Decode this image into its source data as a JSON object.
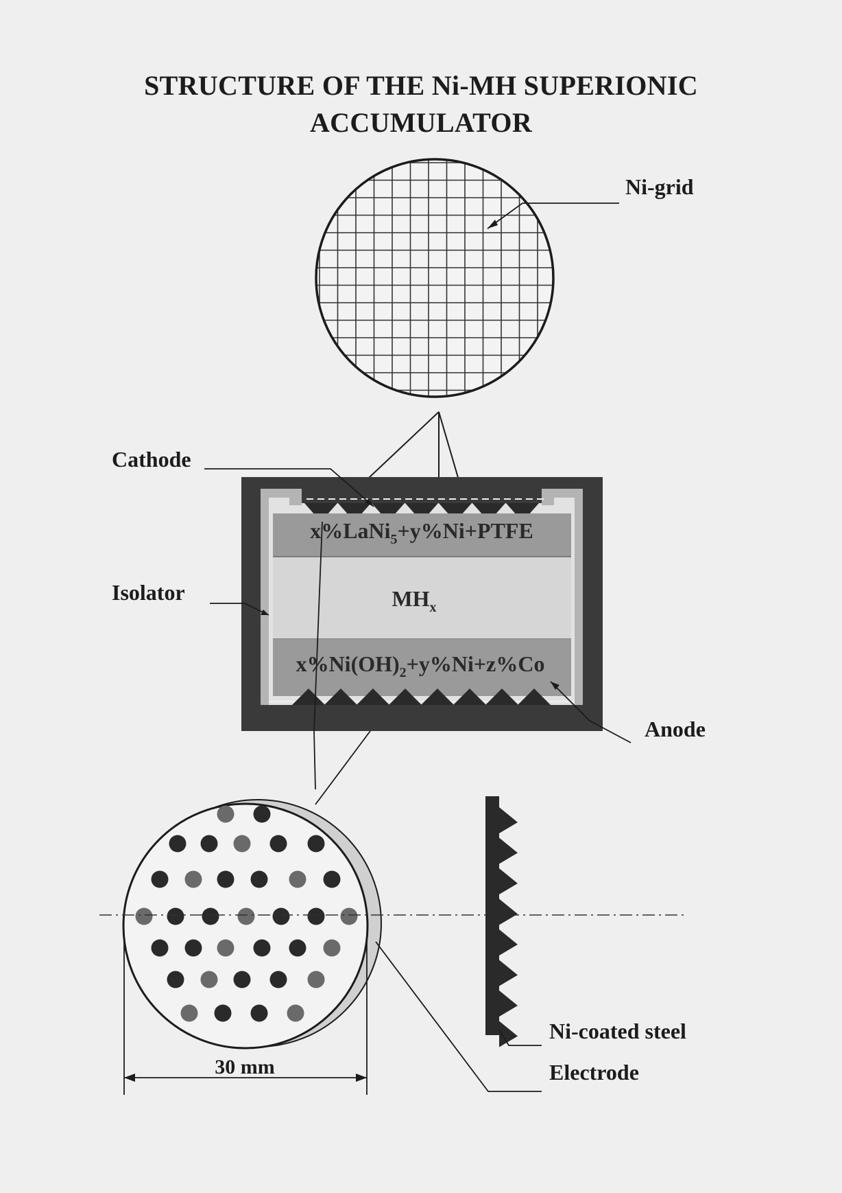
{
  "title": {
    "line1": "STRUCTURE OF THE Ni-MH SUPERIONIC",
    "line2": "ACCUMULATOR"
  },
  "labels": {
    "ni_grid": "Ni-grid",
    "cathode": "Cathode",
    "isolator": "Isolator",
    "anode": "Anode",
    "ni_coated_steel": "Ni-coated steel",
    "electrode": "Electrode",
    "dimension": "30 mm"
  },
  "layers": {
    "cathode_mix": {
      "a": "x%LaNi",
      "sub": "5",
      "b": "+y%Ni+PTFE"
    },
    "electrolyte": {
      "a": "MH",
      "sub": "x"
    },
    "anode_mix": {
      "a": "x%Ni(OH)",
      "sub": "2",
      "b": "+y%Ni+z%Co"
    }
  },
  "colors": {
    "paper": "#efefef",
    "ink": "#1c1c1c",
    "housing": "#3a3a3a",
    "layer_dark": "#9a9a9a",
    "layer_light": "#d6d6d6"
  }
}
